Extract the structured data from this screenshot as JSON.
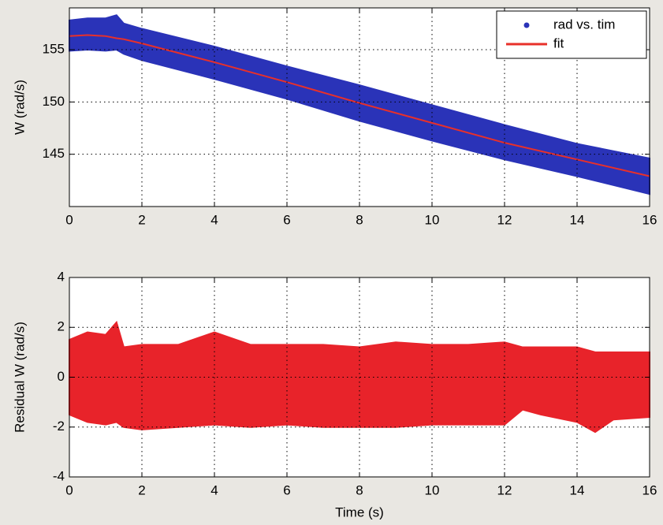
{
  "chart_data": [
    {
      "type": "band",
      "ylabel": "W (rad/s)",
      "x": [
        0,
        0.5,
        1,
        1.3,
        1.5,
        2,
        4,
        6,
        8,
        10,
        12,
        14,
        16
      ],
      "series": [
        {
          "name": "rad vs. tim",
          "color": "#2a33b8",
          "high": [
            157.8,
            158.0,
            158.0,
            158.3,
            157.5,
            157.0,
            155.3,
            153.4,
            151.6,
            149.7,
            147.8,
            146.0,
            144.6
          ],
          "low": [
            154.9,
            155.0,
            154.9,
            155.0,
            154.6,
            154.0,
            152.2,
            150.3,
            148.2,
            146.3,
            144.5,
            142.9,
            141.2
          ]
        },
        {
          "name": "fit",
          "color": "#e8302a",
          "values": [
            156.3,
            156.4,
            156.3,
            156.1,
            156.0,
            155.6,
            153.8,
            151.9,
            149.9,
            148.0,
            146.1,
            144.5,
            142.9
          ]
        }
      ],
      "xlim": [
        0,
        16
      ],
      "xticks": [
        0,
        2,
        4,
        6,
        8,
        10,
        12,
        14,
        16
      ],
      "ylim": [
        140,
        159
      ],
      "yticks": [
        145,
        150,
        155
      ],
      "grid": true,
      "legend": "upper right"
    },
    {
      "type": "band",
      "xlabel": "Time (s)",
      "ylabel": "Residual W (rad/s)",
      "x": [
        0,
        0.5,
        1,
        1.3,
        1.5,
        2,
        3,
        4,
        5,
        6,
        7,
        8,
        9,
        10,
        11,
        12,
        12.5,
        13,
        14,
        14.5,
        15,
        16
      ],
      "series": [
        {
          "color": "#e8232a",
          "high": [
            1.5,
            1.8,
            1.7,
            2.2,
            1.2,
            1.3,
            1.3,
            1.8,
            1.3,
            1.3,
            1.3,
            1.2,
            1.4,
            1.3,
            1.3,
            1.4,
            1.2,
            1.2,
            1.2,
            1.0,
            1.0,
            1.0
          ],
          "low": [
            -1.5,
            -1.8,
            -1.9,
            -1.8,
            -2.0,
            -2.1,
            -2.0,
            -1.9,
            -2.0,
            -1.9,
            -2.0,
            -2.0,
            -2.0,
            -1.9,
            -1.9,
            -1.9,
            -1.3,
            -1.5,
            -1.8,
            -2.2,
            -1.7,
            -1.6
          ]
        }
      ],
      "xlim": [
        0,
        16
      ],
      "xticks": [
        0,
        2,
        4,
        6,
        8,
        10,
        12,
        14,
        16
      ],
      "ylim": [
        -4,
        4
      ],
      "yticks": [
        -4,
        -2,
        0,
        2,
        4
      ],
      "grid": true
    }
  ]
}
